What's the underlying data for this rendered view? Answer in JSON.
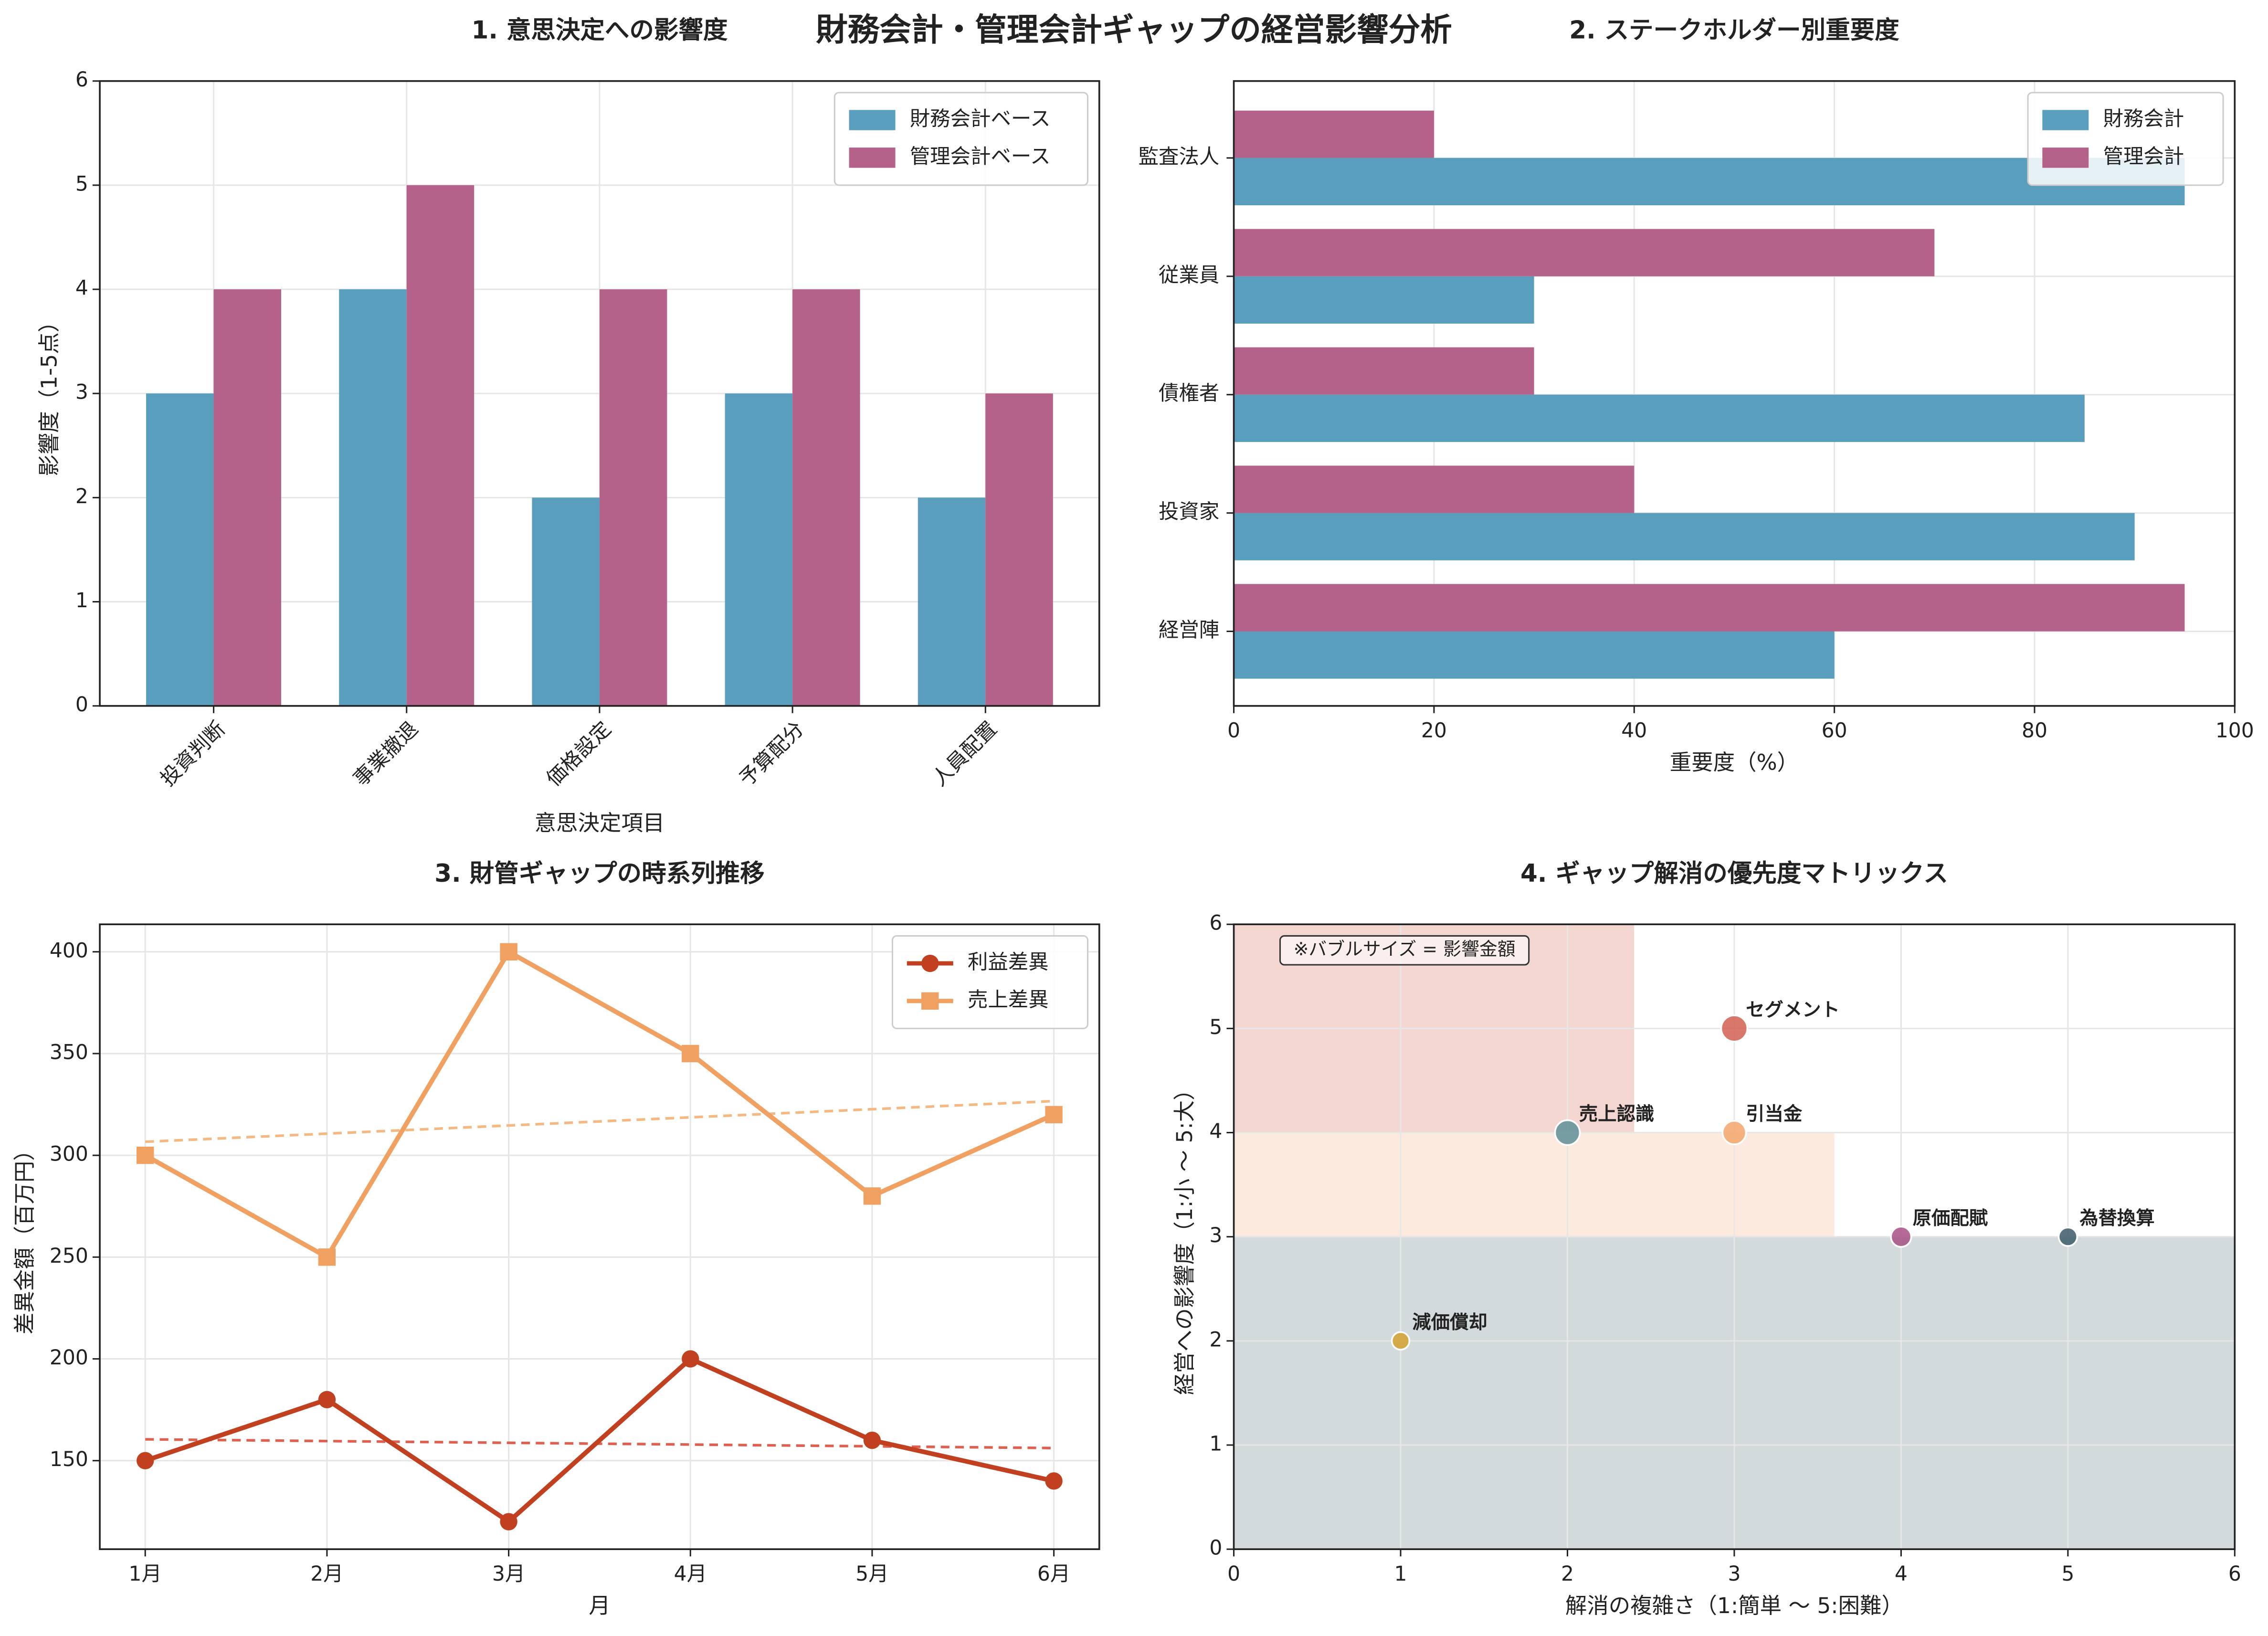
{
  "title": "財務会計・管理会計ギャップの経営影響分析",
  "chart_data": [
    {
      "type": "bar",
      "title": "1. 意思決定への影響度",
      "x_label": "意思決定項目",
      "y_label": "影響度（1-5点）",
      "categories": [
        "投資判断",
        "事業撤退",
        "価格設定",
        "予算配分",
        "人員配置"
      ],
      "x_tick_rotation": 45,
      "series": [
        {
          "name": "財務会計ベース",
          "color": "#5a9ebd",
          "values": [
            3,
            4,
            2,
            3,
            2
          ]
        },
        {
          "name": "管理会計ベース",
          "color": "#b5628a",
          "values": [
            4,
            5,
            4,
            4,
            3
          ]
        }
      ],
      "ylim": [
        0,
        6
      ],
      "yticks": [
        0,
        1,
        2,
        3,
        4,
        5,
        6
      ],
      "grid": true,
      "legend": "upper right"
    },
    {
      "type": "barh",
      "title": "2. ステークホルダー別重要度",
      "x_label": "重要度（%）",
      "categories": [
        "経営陣",
        "投資家",
        "債権者",
        "従業員",
        "監査法人"
      ],
      "series": [
        {
          "name": "財務会計",
          "color": "#5a9ebd",
          "values": [
            60,
            90,
            85,
            30,
            95
          ]
        },
        {
          "name": "管理会計",
          "color": "#b5628a",
          "values": [
            95,
            40,
            30,
            70,
            20
          ]
        }
      ],
      "xlim": [
        0,
        100
      ],
      "xticks": [
        0,
        20,
        40,
        60,
        80,
        100
      ],
      "grid": true,
      "legend": "upper right"
    },
    {
      "type": "line",
      "title": "3. 財管ギャップの時系列推移",
      "x_label": "月",
      "y_label": "差異金額（百万円）",
      "categories": [
        "1月",
        "2月",
        "3月",
        "4月",
        "5月",
        "6月"
      ],
      "series": [
        {
          "name": "利益差異",
          "color": "#c0401f",
          "marker": "circle",
          "trend_color": "#e06050",
          "values": [
            150,
            180,
            120,
            200,
            160,
            140
          ]
        },
        {
          "name": "売上差異",
          "color": "#f0a060",
          "marker": "square",
          "trend_color": "#f5b880",
          "values": [
            300,
            250,
            400,
            350,
            280,
            320
          ]
        }
      ],
      "ylim": [
        106.5,
        413.5
      ],
      "yticks": [
        150,
        200,
        250,
        300,
        350,
        400
      ],
      "grid": true,
      "trend": true,
      "legend": "upper right"
    },
    {
      "type": "bubble",
      "title": "4. ギャップ解消の優先度マトリックス",
      "x_label": "解消の複雑さ（1:簡単 ～ 5:困難）",
      "y_label": "経営への影響度（1:小 ～ 5:大）",
      "annotation": "※バブルサイズ = 影響金額",
      "zones": [
        {
          "x": [
            0,
            2.4
          ],
          "y": [
            4,
            6
          ],
          "color": "#f2d6cf"
        },
        {
          "x": [
            0,
            3.6
          ],
          "y": [
            3,
            4
          ],
          "color": "#fbeadd"
        },
        {
          "x": [
            0,
            6
          ],
          "y": [
            0,
            3
          ],
          "color": "#d2dadc"
        }
      ],
      "points": [
        {
          "label": "減価償却",
          "x": 1,
          "y": 2,
          "size": 90,
          "color": "#d4a030"
        },
        {
          "label": "売上認識",
          "x": 2,
          "y": 4,
          "size": 180,
          "color": "#5f8f98"
        },
        {
          "label": "引当金",
          "x": 3,
          "y": 4,
          "size": 160,
          "color": "#f2a66a"
        },
        {
          "label": "セグメント",
          "x": 3,
          "y": 5,
          "size": 200,
          "color": "#d06050"
        },
        {
          "label": "原価配賦",
          "x": 4,
          "y": 3,
          "size": 120,
          "color": "#a85085"
        },
        {
          "label": "為替換算",
          "x": 5,
          "y": 3,
          "size": 100,
          "color": "#3c5c6a"
        }
      ],
      "xlim": [
        0,
        6
      ],
      "xticks": [
        0,
        1,
        2,
        3,
        4,
        5,
        6
      ],
      "ylim": [
        0,
        6
      ],
      "yticks": [
        0,
        1,
        2,
        3,
        4,
        5,
        6
      ],
      "grid": true
    }
  ]
}
